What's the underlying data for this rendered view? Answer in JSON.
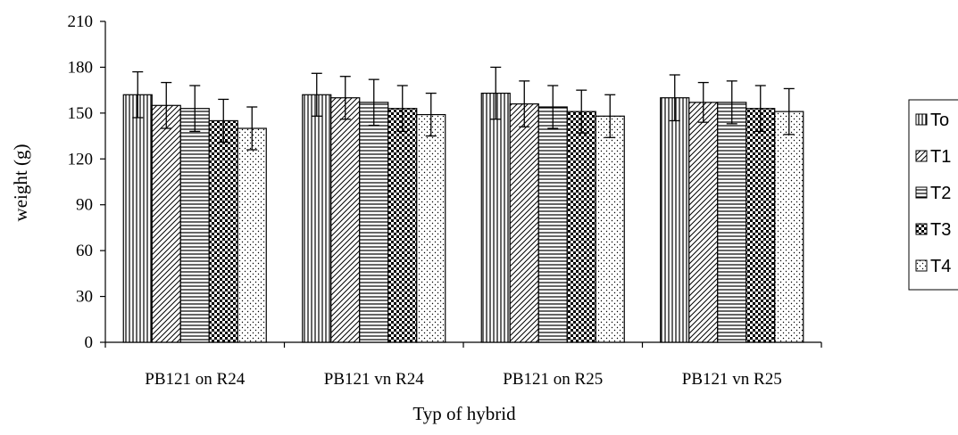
{
  "chart_data": {
    "type": "bar",
    "title": "",
    "xlabel": "Typ of hybrid",
    "ylabel": "weight (g)",
    "ylim": [
      0,
      210
    ],
    "yticks": [
      0,
      30,
      60,
      90,
      120,
      150,
      180,
      210
    ],
    "categories": [
      "PB121 on R24",
      "PB121 vn R24",
      "PB121 on R25",
      "PB121 vn R25"
    ],
    "grid": false,
    "legend_position": "right",
    "error_bars": true,
    "series": [
      {
        "name": "To",
        "pattern": "vertical-lines",
        "values": [
          162,
          162,
          163,
          160
        ],
        "errors": [
          15,
          14,
          17,
          15
        ]
      },
      {
        "name": "T1",
        "pattern": "diagonal-lines",
        "values": [
          155,
          160,
          156,
          157
        ],
        "errors": [
          15,
          14,
          15,
          13
        ]
      },
      {
        "name": "T2",
        "pattern": "horizontal-lines",
        "values": [
          153,
          157,
          154,
          157
        ],
        "errors": [
          15,
          15,
          14,
          14
        ]
      },
      {
        "name": "T3",
        "pattern": "checkerboard",
        "values": [
          145,
          153,
          151,
          153
        ],
        "errors": [
          14,
          15,
          14,
          15
        ]
      },
      {
        "name": "T4",
        "pattern": "dots",
        "values": [
          140,
          149,
          148,
          151
        ],
        "errors": [
          14,
          14,
          14,
          15
        ]
      }
    ]
  }
}
